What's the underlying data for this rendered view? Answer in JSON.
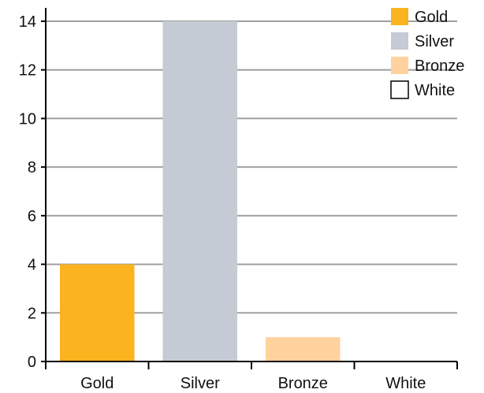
{
  "chart_data": {
    "type": "bar",
    "categories": [
      "Gold",
      "Silver",
      "Bronze",
      "White"
    ],
    "series": [
      {
        "values": [
          4,
          14,
          1,
          0
        ],
        "colors": [
          "#fbb31f",
          "#c5cbd4",
          "#ffd29e",
          "#ffffff"
        ]
      }
    ],
    "ylim": [
      0,
      14
    ],
    "yticks": [
      0,
      2,
      4,
      6,
      8,
      10,
      12,
      14
    ],
    "grid": true,
    "legend": {
      "placement": "top-right",
      "entries": [
        {
          "label": "Gold",
          "color": "#fbb31f"
        },
        {
          "label": "Silver",
          "color": "#c5cbd4"
        },
        {
          "label": "Bronze",
          "color": "#ffd29e"
        },
        {
          "label": "White",
          "color": "#ffffff"
        }
      ]
    },
    "gridline_color": "#a0a0a0",
    "axis_color": "#000000"
  }
}
